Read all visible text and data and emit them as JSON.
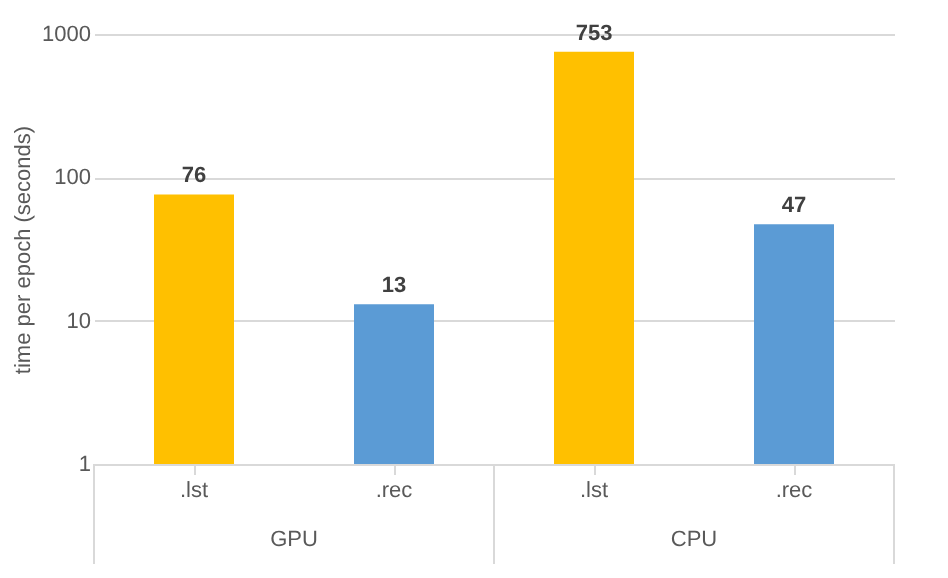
{
  "chart_data": {
    "type": "bar",
    "ylabel": "time per epoch (seconds)",
    "categories": [
      ".lst",
      ".rec",
      ".lst",
      ".rec"
    ],
    "values": [
      76,
      13,
      753,
      47
    ],
    "colors": [
      "#ffc000",
      "#5b9bd5",
      "#ffc000",
      "#5b9bd5"
    ],
    "log": true,
    "ylim": [
      1,
      1000
    ],
    "yticks": [
      1,
      10,
      100,
      1000
    ],
    "grid": "y",
    "data_labels": true,
    "annotations": [
      "GPU",
      "CPU"
    ]
  }
}
